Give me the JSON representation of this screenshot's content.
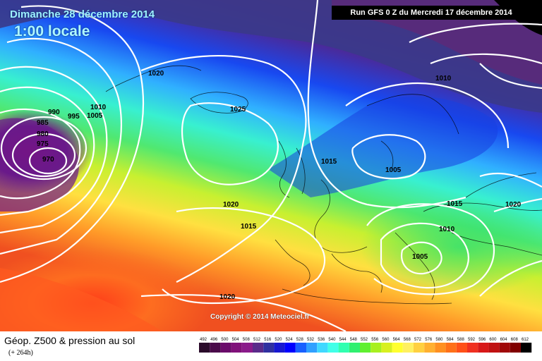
{
  "header": {
    "date": "Dimanche 28 décembre 2014",
    "time": "1:00 locale",
    "run": "Run GFS 0 Z du Mercredi 17 décembre 2014"
  },
  "copyright": "Copyright © 2014 Meteociel.fr",
  "footer": {
    "title": "Géop. Z500 & pression au sol",
    "subtitle": "(+ 264h)"
  },
  "isobar_labels": [
    "1020",
    "1025",
    "1010",
    "1005",
    "995",
    "990",
    "985",
    "980",
    "975",
    "970",
    "1015",
    "1010",
    "1005",
    "1020",
    "1015",
    "1015",
    "1010",
    "1005",
    "1020",
    "1020"
  ],
  "legend": {
    "values": [
      "492",
      "496",
      "500",
      "504",
      "508",
      "512",
      "516",
      "520",
      "524",
      "528",
      "532",
      "536",
      "540",
      "544",
      "548",
      "552",
      "556",
      "560",
      "564",
      "568",
      "572",
      "576",
      "580",
      "584",
      "588",
      "592",
      "596",
      "600",
      "604",
      "608",
      "612"
    ],
    "colors": [
      "#2a0a2a",
      "#4a0a4a",
      "#6a0a6a",
      "#80107a",
      "#8a1a8a",
      "#5a2a8a",
      "#3030a0",
      "#1818d0",
      "#0000ff",
      "#1860ff",
      "#30a0ff",
      "#40d8ff",
      "#40ffe8",
      "#30ffb0",
      "#30f070",
      "#60f030",
      "#a8f020",
      "#d8f020",
      "#ffff30",
      "#fff060",
      "#ffd040",
      "#ffb030",
      "#ff9020",
      "#ff7018",
      "#ff5018",
      "#f03020",
      "#d81818",
      "#c01010",
      "#a00808",
      "#800000",
      "#000000"
    ]
  }
}
